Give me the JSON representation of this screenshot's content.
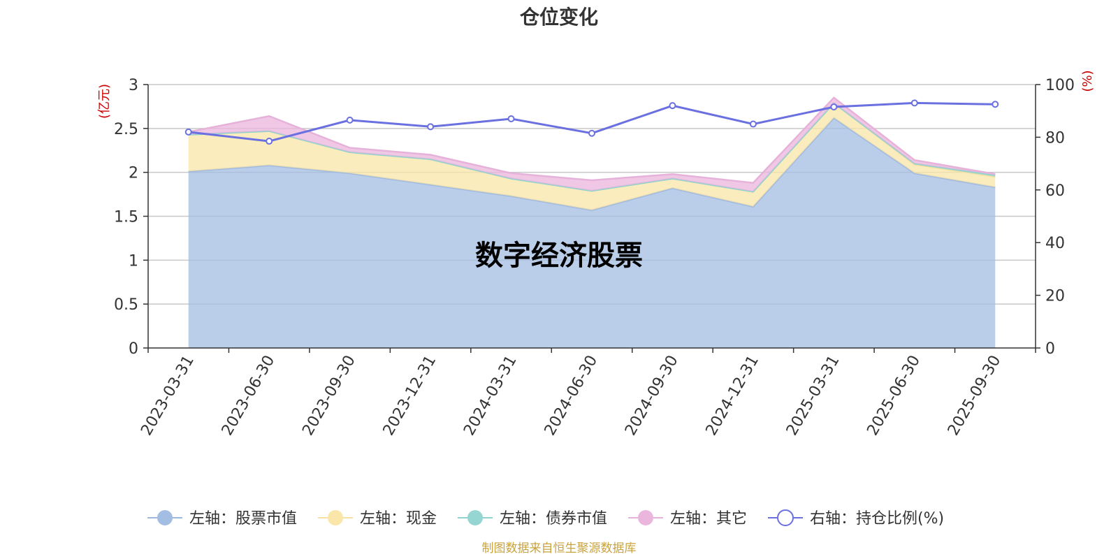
{
  "chart_data": {
    "type": "area",
    "title": "仓位变化",
    "watermark": "数字经济股票",
    "source": "制图数据来自恒生聚源数据库",
    "categories": [
      "2023-03-31",
      "2023-06-30",
      "2023-09-30",
      "2023-12-31",
      "2024-03-31",
      "2024-06-30",
      "2024-09-30",
      "2024-12-31",
      "2025-03-31",
      "2025-06-30",
      "2025-09-30"
    ],
    "left_axis": {
      "unit": "(亿元)",
      "min": 0,
      "max": 3,
      "ticks": [
        "0",
        "0.5",
        "1",
        "1.5",
        "2",
        "2.5",
        "3"
      ],
      "unit_color": "#cc0000"
    },
    "right_axis": {
      "unit": "(%)",
      "min": 0,
      "max": 100,
      "ticks": [
        "0",
        "20",
        "40",
        "60",
        "80",
        "100"
      ],
      "unit_color": "#cc0000"
    },
    "grid": true,
    "legend_position": "bottom",
    "series": [
      {
        "name": "左轴：股票市值",
        "axis": "left",
        "kind": "stacked-area",
        "color": "#a3bde3",
        "line_color": "#9db8e0",
        "values": [
          2.01,
          2.08,
          1.99,
          1.86,
          1.73,
          1.57,
          1.82,
          1.61,
          2.62,
          1.99,
          1.83
        ]
      },
      {
        "name": "左轴：现金",
        "axis": "left",
        "kind": "stacked-area",
        "color": "#f9e6a8",
        "line_color": "#f8e1a0",
        "values": [
          0.42,
          0.39,
          0.24,
          0.29,
          0.2,
          0.22,
          0.11,
          0.17,
          0.17,
          0.1,
          0.12
        ]
      },
      {
        "name": "左轴：债券市值",
        "axis": "left",
        "kind": "stacked-area",
        "color": "#95d6d2",
        "line_color": "#8fd3cf",
        "values": [
          0,
          0,
          0,
          0,
          0,
          0,
          0,
          0,
          0,
          0.01,
          0.02
        ]
      },
      {
        "name": "左轴：其它",
        "axis": "left",
        "kind": "stacked-area",
        "color": "#ebb6dd",
        "line_color": "#e6b2d9",
        "values": [
          0.03,
          0.17,
          0.05,
          0.05,
          0.06,
          0.12,
          0.05,
          0.1,
          0.06,
          0.04,
          0.01
        ]
      },
      {
        "name": "右轴：持仓比例(%)",
        "axis": "right",
        "kind": "line",
        "color": "#6b70e0",
        "values": [
          82,
          78.5,
          86.5,
          84,
          87,
          81.5,
          92,
          85,
          91.5,
          93,
          92.5
        ]
      }
    ]
  }
}
